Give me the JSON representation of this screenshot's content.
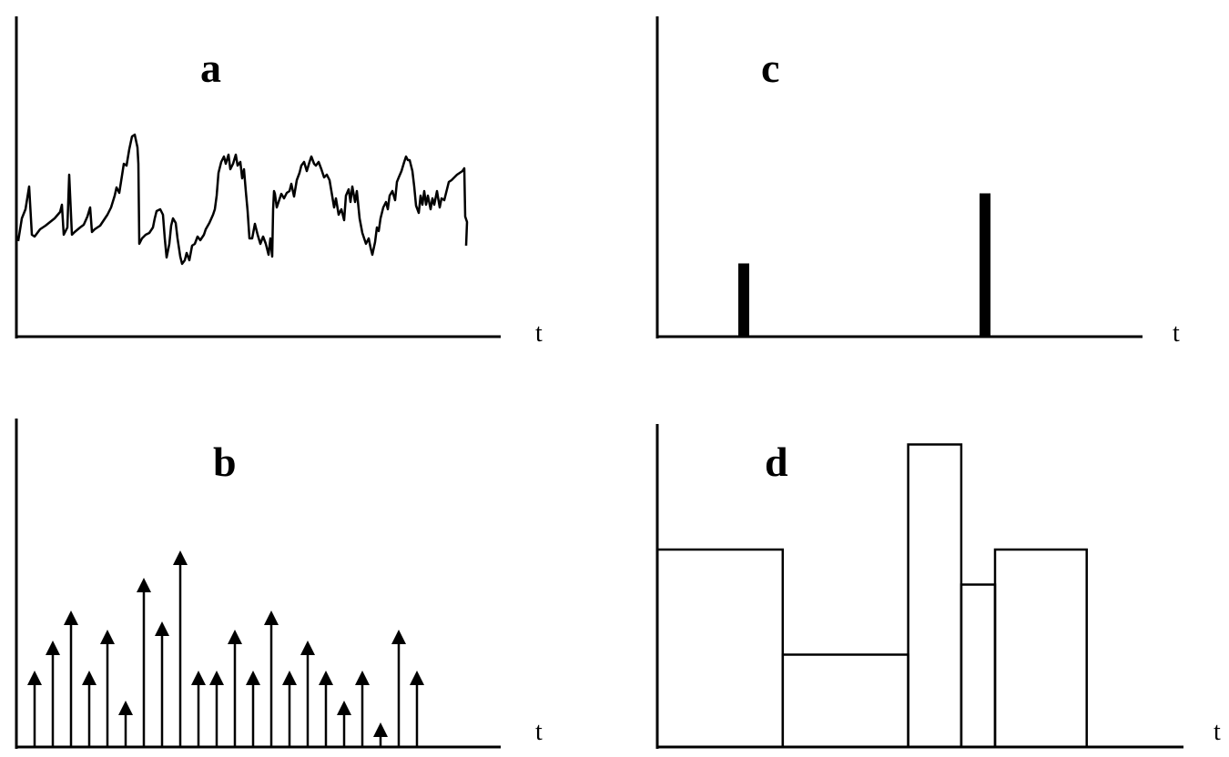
{
  "panels": {
    "a": {
      "label": "a",
      "axis_label": "t"
    },
    "b": {
      "label": "b",
      "axis_label": "t"
    },
    "c": {
      "label": "c",
      "axis_label": "t"
    },
    "d": {
      "label": "d",
      "axis_label": "t"
    }
  },
  "panel_b_spikes": [
    {
      "t": 0.04,
      "height": 0.28
    },
    {
      "t": 0.08,
      "height": 0.39
    },
    {
      "t": 0.12,
      "height": 0.5
    },
    {
      "t": 0.16,
      "height": 0.28
    },
    {
      "t": 0.2,
      "height": 0.43
    },
    {
      "t": 0.24,
      "height": 0.17
    },
    {
      "t": 0.28,
      "height": 0.62
    },
    {
      "t": 0.32,
      "height": 0.46
    },
    {
      "t": 0.36,
      "height": 0.72
    },
    {
      "t": 0.4,
      "height": 0.28
    },
    {
      "t": 0.44,
      "height": 0.28
    },
    {
      "t": 0.48,
      "height": 0.43
    },
    {
      "t": 0.52,
      "height": 0.28
    },
    {
      "t": 0.56,
      "height": 0.5
    },
    {
      "t": 0.6,
      "height": 0.28
    },
    {
      "t": 0.64,
      "height": 0.39
    },
    {
      "t": 0.68,
      "height": 0.28
    },
    {
      "t": 0.72,
      "height": 0.17
    },
    {
      "t": 0.76,
      "height": 0.28
    },
    {
      "t": 0.8,
      "height": 0.09
    },
    {
      "t": 0.84,
      "height": 0.43
    },
    {
      "t": 0.88,
      "height": 0.28
    }
  ],
  "panel_c_pulses": [
    {
      "t": 0.19,
      "height": 0.23
    },
    {
      "t": 0.72,
      "height": 0.45
    }
  ],
  "panel_d_segments": [
    {
      "t0": 0.0,
      "t1": 0.26,
      "level": 0.62
    },
    {
      "t0": 0.26,
      "t1": 0.52,
      "level": 0.29
    },
    {
      "t0": 0.52,
      "t1": 0.63,
      "level": 0.95
    },
    {
      "t0": 0.63,
      "t1": 0.7,
      "level": 0.51
    },
    {
      "t0": 0.7,
      "t1": 0.89,
      "level": 0.62
    }
  ]
}
